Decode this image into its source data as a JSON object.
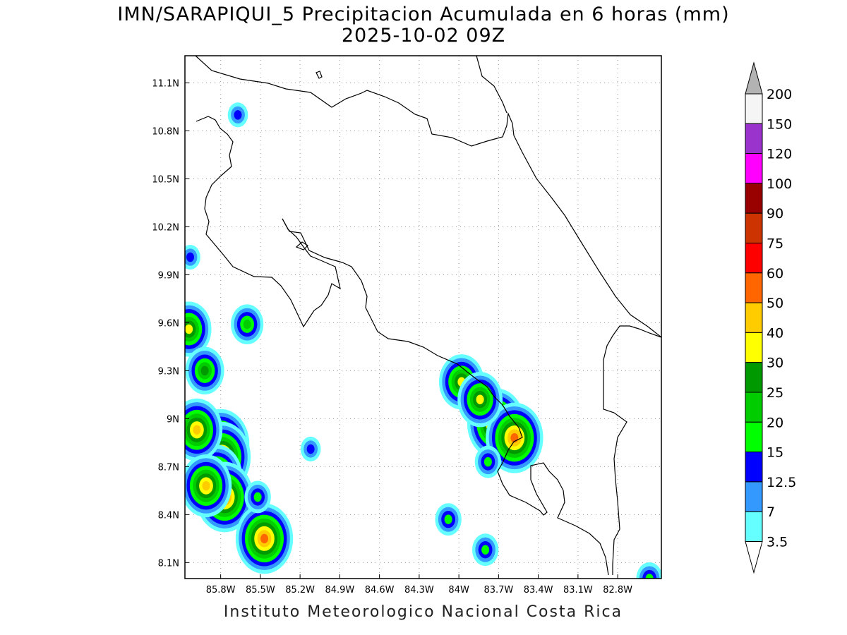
{
  "title": "IMN/SARAPIQUI_5 Precipitacion Acumulada en 6 horas (mm)",
  "subtitle": "2025-10-02 09Z",
  "footer": "Instituto Meteorologico Nacional Costa Rica",
  "map": {
    "lon_range": [
      -86.07,
      -82.47
    ],
    "lat_range": [
      8.0,
      11.27
    ],
    "lon_ticks": [
      {
        "value": -85.8,
        "label": "85.8W"
      },
      {
        "value": -85.5,
        "label": "85.5W"
      },
      {
        "value": -85.2,
        "label": "85.2W"
      },
      {
        "value": -84.9,
        "label": "84.9W"
      },
      {
        "value": -84.6,
        "label": "84.6W"
      },
      {
        "value": -84.3,
        "label": "84.3W"
      },
      {
        "value": -84.0,
        "label": "84W"
      },
      {
        "value": -83.7,
        "label": "83.7W"
      },
      {
        "value": -83.4,
        "label": "83.4W"
      },
      {
        "value": -83.1,
        "label": "83.1W"
      },
      {
        "value": -82.8,
        "label": "82.8W"
      }
    ],
    "lat_ticks": [
      {
        "value": 11.1,
        "label": "11.1N"
      },
      {
        "value": 10.8,
        "label": "10.8N"
      },
      {
        "value": 10.5,
        "label": "10.5N"
      },
      {
        "value": 10.2,
        "label": "10.2N"
      },
      {
        "value": 9.9,
        "label": "9.9N"
      },
      {
        "value": 9.6,
        "label": "9.6N"
      },
      {
        "value": 9.3,
        "label": "9.3N"
      },
      {
        "value": 9.0,
        "label": "9N"
      },
      {
        "value": 8.7,
        "label": "8.7N"
      },
      {
        "value": 8.4,
        "label": "8.4N"
      },
      {
        "value": 8.1,
        "label": "8.1N"
      }
    ],
    "grid": true,
    "precip_cells": [
      {
        "lon": -85.8,
        "lat": 8.84,
        "level": 8
      },
      {
        "lon": -85.79,
        "lat": 8.76,
        "level": 8
      },
      {
        "lon": -85.83,
        "lat": 8.64,
        "level": 7
      },
      {
        "lon": -85.77,
        "lat": 8.51,
        "level": 8
      },
      {
        "lon": -85.47,
        "lat": 8.25,
        "level": 8
      },
      {
        "lon": -85.6,
        "lat": 9.59,
        "level": 4
      },
      {
        "lon": -86.04,
        "lat": 9.56,
        "level": 6
      },
      {
        "lon": -85.92,
        "lat": 9.3,
        "level": 5
      },
      {
        "lon": -85.67,
        "lat": 10.9,
        "level": 2
      },
      {
        "lon": -86.03,
        "lat": 10.01,
        "level": 2
      },
      {
        "lon": -85.52,
        "lat": 8.51,
        "level": 3
      },
      {
        "lon": -85.12,
        "lat": 8.81,
        "level": 2
      },
      {
        "lon": -83.72,
        "lat": 8.97,
        "level": 8
      },
      {
        "lon": -83.58,
        "lat": 8.88,
        "level": 8
      },
      {
        "lon": -83.98,
        "lat": 9.23,
        "level": 6
      },
      {
        "lon": -83.84,
        "lat": 9.12,
        "level": 6
      },
      {
        "lon": -83.78,
        "lat": 8.73,
        "level": 3
      },
      {
        "lon": -84.08,
        "lat": 8.37,
        "level": 3
      },
      {
        "lon": -83.8,
        "lat": 8.18,
        "level": 3
      },
      {
        "lon": -85.98,
        "lat": 8.93,
        "level": 7
      },
      {
        "lon": -85.91,
        "lat": 8.58,
        "level": 7
      },
      {
        "lon": -82.56,
        "lat": 8.0,
        "level": 3
      }
    ]
  },
  "colorbar": {
    "levels": [
      "3.5",
      "7",
      "12.5",
      "15",
      "20",
      "25",
      "30",
      "40",
      "50",
      "60",
      "75",
      "90",
      "100",
      "120",
      "150",
      "200"
    ],
    "colors": [
      "#66ffff",
      "#3399ff",
      "#0000ff",
      "#00ff00",
      "#00cc00",
      "#009900",
      "#ffff00",
      "#ffcc00",
      "#ff6600",
      "#ff0000",
      "#cc3300",
      "#990000",
      "#ff00ff",
      "#9933cc",
      "#f5f5f5",
      "#b3b3b3"
    ]
  }
}
